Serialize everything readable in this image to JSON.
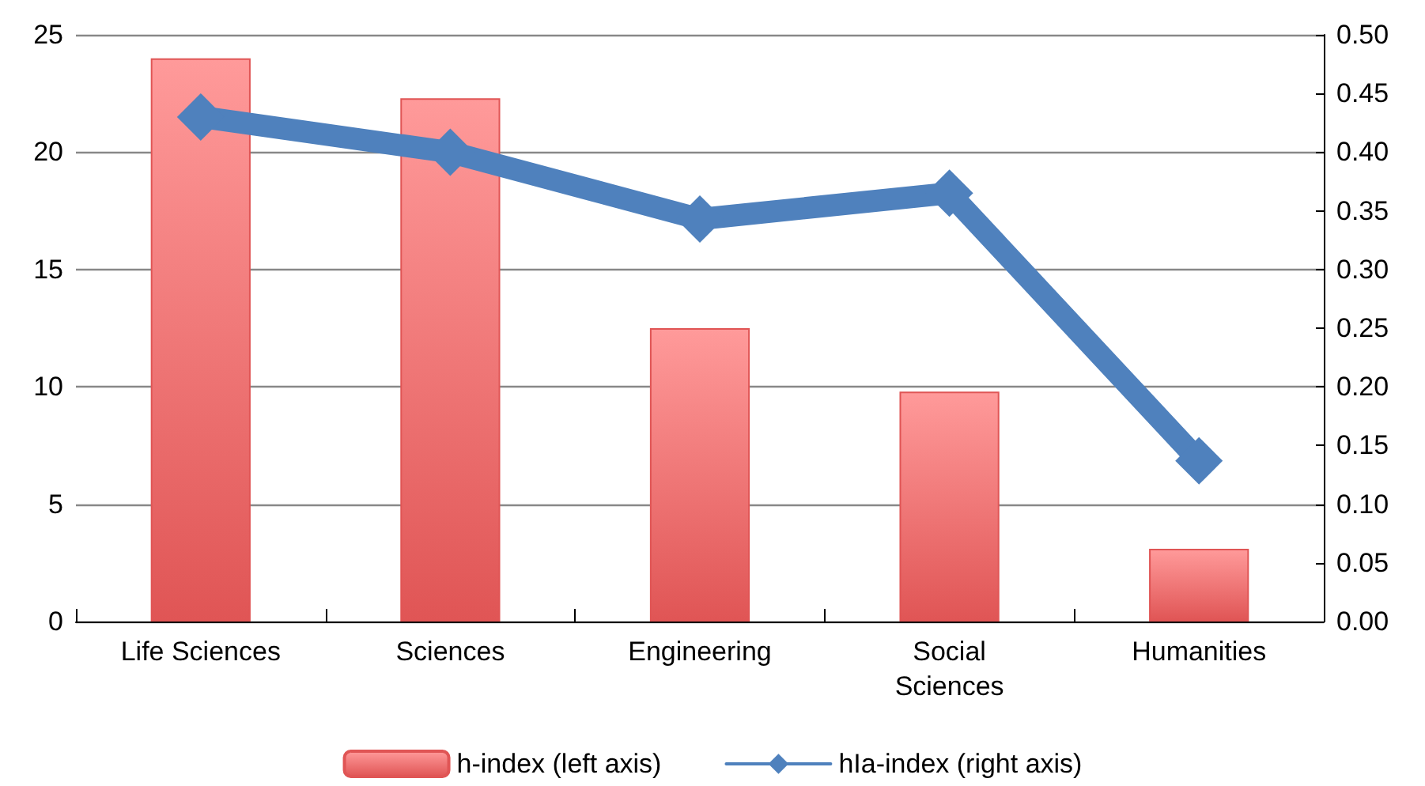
{
  "chart_data": {
    "type": "bar",
    "categories": [
      "Life Sciences",
      "Sciences",
      "Engineering",
      "Social\nSciences",
      "Humanities"
    ],
    "series": [
      {
        "name": "h-index (left axis)",
        "color": "#e05555",
        "values": [
          24,
          22.3,
          12.5,
          9.8,
          3.1
        ]
      },
      {
        "name": "hIa-index (right axis)",
        "type": "line",
        "axis": "y2",
        "color": "#4f81bd",
        "values": [
          0.43,
          0.4,
          0.343,
          0.365,
          0.137
        ]
      }
    ],
    "ylim": [
      0,
      25
    ],
    "yticks": [
      0,
      5,
      10,
      15,
      20,
      25
    ],
    "y2lim": [
      0,
      0.5
    ],
    "y2ticks": [
      {
        "value": 0,
        "label": "0.00"
      },
      {
        "value": 0.05,
        "label": "0.05"
      },
      {
        "value": 0.1,
        "label": "0.10"
      },
      {
        "value": 0.15,
        "label": "0.15"
      },
      {
        "value": 0.2,
        "label": "0.20"
      },
      {
        "value": 0.25,
        "label": "0.25"
      },
      {
        "value": 0.3,
        "label": "0.30"
      },
      {
        "value": 0.35,
        "label": "0.35"
      },
      {
        "value": 0.4,
        "label": "0.40"
      },
      {
        "value": 0.45,
        "label": "0.45"
      },
      {
        "value": 0.5,
        "label": "0.50"
      }
    ],
    "grid": "y",
    "legend": "bottom",
    "marker": "diamond",
    "line_style": "solid"
  }
}
